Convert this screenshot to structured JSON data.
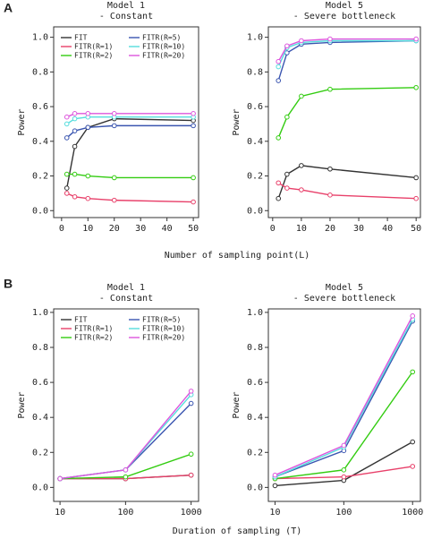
{
  "panels": [
    {
      "label": "A",
      "x_label": "Number of sampling point(L)"
    },
    {
      "label": "B",
      "x_label": "Duration of sampling (T)"
    }
  ],
  "chart_data": [
    {
      "type": "line",
      "title": "Model 1",
      "subtitle": "- Constant",
      "y_label": "Power",
      "legend": "upper-left",
      "x": [
        2,
        5,
        10,
        20,
        50
      ],
      "xlim": [
        -3,
        52
      ],
      "xticks": [
        0,
        10,
        20,
        30,
        40,
        50
      ],
      "ylim": [
        -0.04,
        1.06
      ],
      "yticks": [
        {
          "value": 0,
          "label": "0.0"
        },
        0.2,
        0.4,
        0.6,
        0.8,
        {
          "value": 1,
          "label": "1.0"
        }
      ],
      "series": [
        {
          "name": "FIT",
          "color": "#333333",
          "values": [
            0.13,
            0.37,
            0.48,
            0.53,
            0.52
          ]
        },
        {
          "name": "FITR(R=1)",
          "color": "#e8406a",
          "values": [
            0.1,
            0.08,
            0.07,
            0.06,
            0.05
          ]
        },
        {
          "name": "FITR(R=2)",
          "color": "#33cc11",
          "values": [
            0.21,
            0.21,
            0.2,
            0.19,
            0.19
          ]
        },
        {
          "name": "FITR(R=5)",
          "color": "#3a55b0",
          "values": [
            0.42,
            0.46,
            0.48,
            0.49,
            0.49
          ]
        },
        {
          "name": "FITR(R=10)",
          "color": "#55dddd",
          "values": [
            0.5,
            0.53,
            0.54,
            0.54,
            0.54
          ]
        },
        {
          "name": "FITR(R=20)",
          "color": "#dd55dd",
          "values": [
            0.54,
            0.56,
            0.56,
            0.56,
            0.56
          ]
        }
      ]
    },
    {
      "type": "line",
      "title": "Model 5",
      "subtitle": "- Severe bottleneck",
      "y_label": "Power",
      "x": [
        2,
        5,
        10,
        20,
        50
      ],
      "xlim": [
        -1.5,
        51.5
      ],
      "xticks": [
        0,
        10,
        20,
        30,
        40,
        50
      ],
      "ylim": [
        -0.04,
        1.06
      ],
      "yticks": [
        {
          "value": 0,
          "label": "0.0"
        },
        0.2,
        0.4,
        0.6,
        0.8,
        {
          "value": 1,
          "label": "1.0"
        }
      ],
      "series": [
        {
          "color": "#333333",
          "values": [
            0.07,
            0.21,
            0.26,
            0.24,
            0.19
          ]
        },
        {
          "color": "#e8406a",
          "values": [
            0.16,
            0.13,
            0.12,
            0.09,
            0.07
          ]
        },
        {
          "color": "#33cc11",
          "values": [
            0.42,
            0.54,
            0.66,
            0.7,
            0.71
          ]
        },
        {
          "color": "#3a55b0",
          "values": [
            0.75,
            0.91,
            0.96,
            0.97,
            0.98
          ]
        },
        {
          "color": "#55dddd",
          "values": [
            0.83,
            0.94,
            0.97,
            0.98,
            0.98
          ]
        },
        {
          "color": "#dd55dd",
          "values": [
            0.86,
            0.95,
            0.98,
            0.99,
            0.99
          ]
        }
      ]
    },
    {
      "type": "line",
      "title": "Model 1",
      "subtitle": "- Constant",
      "y_label": "Power",
      "legend": "upper-left",
      "log_x": true,
      "x": [
        10,
        100,
        1000
      ],
      "xlim": [
        8,
        1300
      ],
      "xticks": [
        10,
        100,
        1000
      ],
      "ylim": [
        -0.08,
        1.02
      ],
      "yticks": [
        {
          "value": 0,
          "label": "0.0"
        },
        0.2,
        0.4,
        0.6,
        0.8,
        {
          "value": 1,
          "label": "1.0"
        }
      ],
      "series": [
        {
          "name": "FIT",
          "color": "#333333",
          "values": [
            0.05,
            0.05,
            0.07
          ]
        },
        {
          "name": "FITR(R=1)",
          "color": "#e8406a",
          "values": [
            0.05,
            0.05,
            0.07
          ]
        },
        {
          "name": "FITR(R=2)",
          "color": "#33cc11",
          "values": [
            0.05,
            0.06,
            0.19
          ]
        },
        {
          "name": "FITR(R=5)",
          "color": "#3a55b0",
          "values": [
            0.05,
            0.1,
            0.48
          ]
        },
        {
          "name": "FITR(R=10)",
          "color": "#55dddd",
          "values": [
            0.05,
            0.1,
            0.53
          ]
        },
        {
          "name": "FITR(R=20)",
          "color": "#dd55dd",
          "values": [
            0.05,
            0.1,
            0.55
          ]
        }
      ]
    },
    {
      "type": "line",
      "title": "Model 5",
      "subtitle": "- Severe bottleneck",
      "y_label": "Power",
      "log_x": true,
      "x": [
        10,
        100,
        1000
      ],
      "xlim": [
        8,
        1300
      ],
      "xticks": [
        10,
        100,
        1000
      ],
      "ylim": [
        -0.08,
        1.02
      ],
      "yticks": [
        {
          "value": 0,
          "label": "0.0"
        },
        0.2,
        0.4,
        0.6,
        0.8,
        {
          "value": 1,
          "label": "1.0"
        }
      ],
      "series": [
        {
          "color": "#333333",
          "values": [
            0.01,
            0.04,
            0.26
          ]
        },
        {
          "color": "#e8406a",
          "values": [
            0.05,
            0.06,
            0.12
          ]
        },
        {
          "color": "#33cc11",
          "values": [
            0.05,
            0.1,
            0.66
          ]
        },
        {
          "color": "#3a55b0",
          "values": [
            0.06,
            0.21,
            0.95
          ]
        },
        {
          "color": "#55dddd",
          "values": [
            0.06,
            0.23,
            0.96
          ]
        },
        {
          "color": "#dd55dd",
          "values": [
            0.07,
            0.24,
            0.98
          ]
        }
      ]
    }
  ]
}
